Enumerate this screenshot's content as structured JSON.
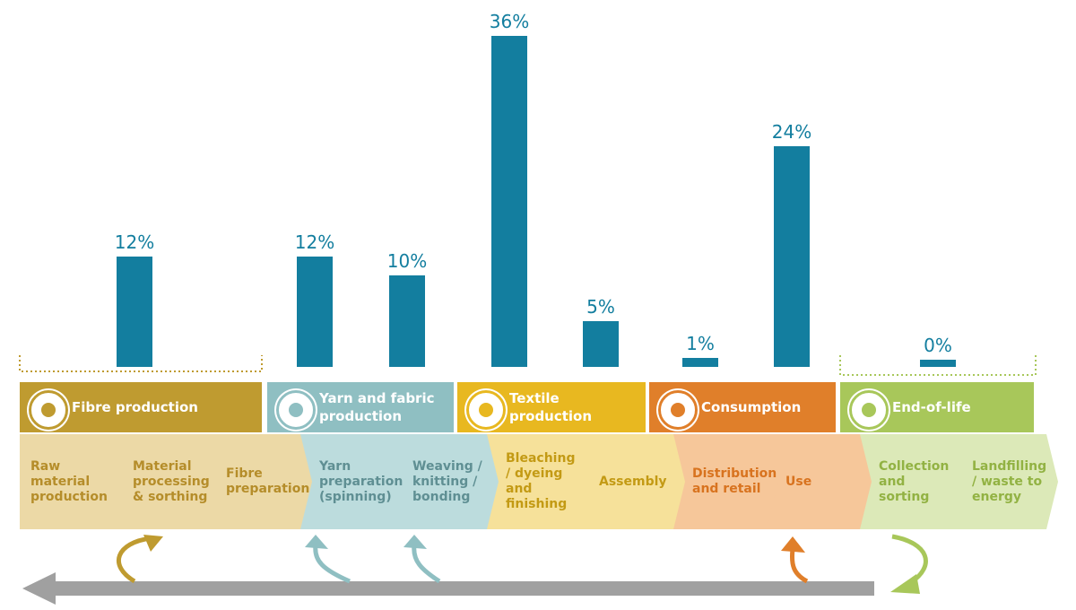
{
  "chart_data": {
    "type": "bar",
    "color": "#137e9f",
    "values": [
      12,
      12,
      10,
      36,
      5,
      1,
      24,
      0
    ],
    "value_labels": [
      "12%",
      "12%",
      "10%",
      "36%",
      "5%",
      "1%",
      "24%",
      "0%"
    ]
  },
  "stages": [
    {
      "name": "Fibre production",
      "color": "#bf9b30",
      "light": "#ecd9a6",
      "text": "#b58d2a",
      "steps": [
        "Raw material production",
        "Material processing & sorthing",
        "Fibre preparation"
      ]
    },
    {
      "name": "Yarn and fabric production",
      "color": "#8fbfc2",
      "light": "#bcdcdd",
      "text": "#5f8f93",
      "steps": [
        "Yarn preparation (spinning)",
        "Weaving / knitting / bonding"
      ]
    },
    {
      "name": "Textile production",
      "color": "#e8b820",
      "light": "#f6e19a",
      "text": "#c39a14",
      "steps": [
        "Bleaching / dyeing and finishing",
        "Assembly"
      ]
    },
    {
      "name": "Consumption",
      "color": "#e07f2a",
      "light": "#f6c79a",
      "text": "#d8731f",
      "steps": [
        "Distribution and retail",
        "Use"
      ]
    },
    {
      "name": "End-of-life",
      "color": "#a8c75a",
      "light": "#dce9b8",
      "text": "#92b243",
      "steps": [
        "Collection and sorting",
        "Landfilling / waste to energy"
      ]
    }
  ]
}
